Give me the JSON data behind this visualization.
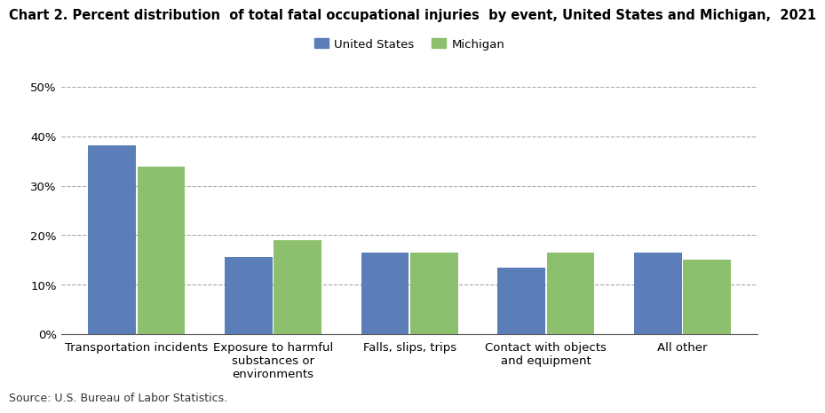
{
  "title": "Chart 2. Percent distribution  of total fatal occupational injuries  by event, United States and Michigan,  2021",
  "categories": [
    "Transportation incidents",
    "Exposure to harmful\nsubstances or\nenvironments",
    "Falls, slips, trips",
    "Contact with objects\nand equipment",
    "All other"
  ],
  "us_values": [
    38.2,
    15.5,
    16.5,
    13.5,
    16.5
  ],
  "mi_values": [
    33.9,
    19.0,
    16.5,
    16.5,
    15.0
  ],
  "us_color": "#5B7DB8",
  "mi_color": "#8CBF6E",
  "us_label": "United States",
  "mi_label": "Michigan",
  "ylim": [
    0,
    50
  ],
  "yticks": [
    0,
    10,
    20,
    30,
    40,
    50
  ],
  "source": "Source: U.S. Bureau of Labor Statistics.",
  "background_color": "#ffffff",
  "grid_color": "#aaaaaa",
  "title_fontsize": 10.5,
  "legend_fontsize": 9.5,
  "tick_fontsize": 9.5,
  "source_fontsize": 9
}
